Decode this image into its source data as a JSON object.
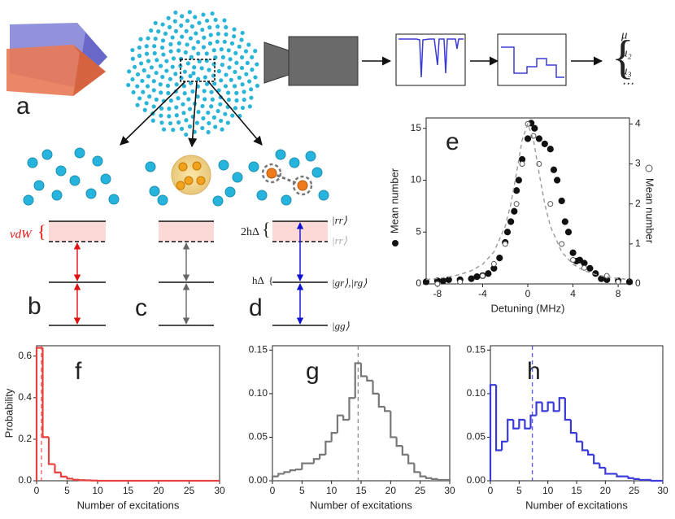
{
  "figure": {
    "panel_labels": [
      "a",
      "b",
      "c",
      "d"
    ],
    "moments": [
      "μ",
      "μ₂",
      "μ₃",
      "⋯"
    ],
    "levels": {
      "vdw": "vdW",
      "two_h_delta": "2hΔ",
      "h_delta": "hΔ",
      "rr": "|rr⟩",
      "rr_shifted": "|rr⟩",
      "gr_rg": "|gr⟩,|rg⟩",
      "gg": "|gg⟩"
    }
  },
  "chart_data": [
    {
      "type": "scatter",
      "label": "e",
      "xlabel": "Detuning (MHz)",
      "ylabel": "Mean number",
      "y2label": "Mean number",
      "xlim": [
        -9,
        9
      ],
      "xticks": [
        -8,
        -4,
        0,
        4,
        8
      ],
      "ylim": [
        0,
        16
      ],
      "yticks": [
        0,
        5,
        10,
        15
      ],
      "y2lim": [
        0,
        4.15
      ],
      "y2ticks": [
        0,
        1,
        2,
        3,
        4
      ],
      "series": [
        {
          "marker": "filled",
          "color": "#111111",
          "x": [
            -9,
            -8,
            -7.5,
            -7,
            -6,
            -5,
            -4.5,
            -4,
            -3.5,
            -3,
            -2.5,
            -2,
            -1.8,
            -1.5,
            -1.2,
            -1,
            -0.8,
            -0.5,
            0,
            0.3,
            0.6,
            1,
            1.5,
            2,
            2.3,
            2.6,
            3,
            3.3,
            3.6,
            4,
            4.3,
            4.6,
            5,
            5.5,
            6,
            6.5,
            7,
            8,
            9
          ],
          "values": [
            0.2,
            0.3,
            0.3,
            0.4,
            0.4,
            0.5,
            0.7,
            0.8,
            1,
            1.5,
            2.5,
            4,
            5,
            6,
            7,
            9,
            10,
            12,
            14,
            15.5,
            15,
            14,
            13.5,
            13,
            11,
            10,
            8,
            6,
            5,
            3,
            2.2,
            2.3,
            2,
            1.5,
            1,
            0.5,
            0.4,
            0.3,
            0.2
          ]
        },
        {
          "marker": "open",
          "axis": "y2",
          "color": "#555555",
          "x": [
            -8,
            -6,
            -4,
            -3,
            -2,
            -1,
            -0.5,
            0,
            0.5,
            1,
            2,
            3,
            4,
            5,
            7,
            8
          ],
          "values": [
            0,
            0.05,
            0.2,
            0.5,
            1,
            2,
            3,
            4,
            3.7,
            3,
            2,
            1,
            0.6,
            0.4,
            0.2,
            0.05
          ]
        },
        {
          "marker": "dashed",
          "axis": "y2",
          "color": "#999999",
          "x": [
            -9,
            -8,
            -7,
            -6,
            -5,
            -4,
            -3,
            -2,
            -1.5,
            -1,
            -0.5,
            0,
            0.5,
            1,
            1.5,
            2,
            3,
            4,
            5,
            6,
            7,
            8,
            9
          ],
          "values": [
            0.107,
            0.136,
            0.175,
            0.235,
            0.33,
            0.49,
            0.8,
            1.44,
            2,
            2.77,
            3.6,
            4,
            3.6,
            2.77,
            2,
            1.44,
            0.8,
            0.49,
            0.33,
            0.235,
            0.175,
            0.136,
            0.107
          ]
        }
      ]
    },
    {
      "type": "histogram",
      "label": "f",
      "xlabel": "Number of excitations",
      "ylabel": "Probability",
      "color": "#e8403f",
      "mean": 0.8,
      "xlim": [
        0,
        30
      ],
      "xticks": [
        0,
        5,
        10,
        15,
        20,
        25,
        30
      ],
      "ylim": [
        0,
        0.65
      ],
      "yticks": [
        {
          "value": 0,
          "label": "0.0"
        },
        0.2,
        0.4,
        0.6
      ],
      "bins": [
        0,
        1,
        2,
        3,
        4,
        5,
        6,
        7,
        8,
        9,
        10,
        11,
        12,
        13,
        14,
        15,
        16,
        17,
        18,
        19,
        20,
        21,
        22,
        23,
        24,
        25,
        26,
        27,
        28,
        29,
        30
      ],
      "values": [
        0.64,
        0.21,
        0.08,
        0.04,
        0.02,
        0.01,
        0.005,
        0.003,
        0.002,
        0.001,
        0,
        0,
        0,
        0,
        0,
        0,
        0,
        0,
        0,
        0,
        0,
        0,
        0,
        0,
        0,
        0,
        0,
        0,
        0,
        0
      ]
    },
    {
      "type": "histogram",
      "label": "g",
      "xlabel": "Number of excitations",
      "color": "#777777",
      "mean": 14.5,
      "xlim": [
        0,
        30
      ],
      "xticks": [
        0,
        5,
        10,
        15,
        20,
        25,
        30
      ],
      "ylim": [
        0,
        0.155
      ],
      "yticks": [
        {
          "value": 0,
          "label": "0.00"
        },
        {
          "value": 0.05,
          "label": "0.05"
        },
        {
          "value": 0.1,
          "label": "0.10"
        },
        {
          "value": 0.15,
          "label": "0.15"
        }
      ],
      "bins": [
        0,
        1,
        2,
        3,
        4,
        5,
        6,
        7,
        8,
        9,
        10,
        11,
        12,
        13,
        14,
        15,
        16,
        17,
        18,
        19,
        20,
        21,
        22,
        23,
        24,
        25,
        26,
        27,
        28,
        29,
        30
      ],
      "values": [
        0.005,
        0.008,
        0.01,
        0.012,
        0.013,
        0.02,
        0.02,
        0.025,
        0.03,
        0.045,
        0.055,
        0.075,
        0.07,
        0.095,
        0.135,
        0.12,
        0.115,
        0.1,
        0.085,
        0.08,
        0.05,
        0.04,
        0.03,
        0.02,
        0.01,
        0.005,
        0.003,
        0.002,
        0.001,
        0.001
      ]
    },
    {
      "type": "histogram",
      "label": "h",
      "xlabel": "Number of excitations",
      "color": "#3a3ad8",
      "mean": 7.3,
      "xlim": [
        0,
        30
      ],
      "xticks": [
        0,
        5,
        10,
        15,
        20,
        25,
        30
      ],
      "ylim": [
        0,
        0.155
      ],
      "yticks": [
        {
          "value": 0,
          "label": "0.00"
        },
        {
          "value": 0.05,
          "label": "0.05"
        },
        {
          "value": 0.1,
          "label": "0.10"
        },
        {
          "value": 0.15,
          "label": "0.15"
        }
      ],
      "bins": [
        0,
        1,
        2,
        3,
        4,
        5,
        6,
        7,
        8,
        9,
        10,
        11,
        12,
        13,
        14,
        15,
        16,
        17,
        18,
        19,
        20,
        21,
        22,
        23,
        24,
        25,
        26,
        27,
        28,
        29,
        30
      ],
      "values": [
        0.11,
        0.035,
        0.045,
        0.07,
        0.06,
        0.07,
        0.06,
        0.075,
        0.09,
        0.08,
        0.09,
        0.08,
        0.095,
        0.07,
        0.055,
        0.045,
        0.035,
        0.03,
        0.02,
        0.015,
        0.008,
        0.008,
        0.005,
        0.005,
        0.003,
        0.002,
        0.001,
        0.001,
        0,
        0
      ]
    }
  ]
}
